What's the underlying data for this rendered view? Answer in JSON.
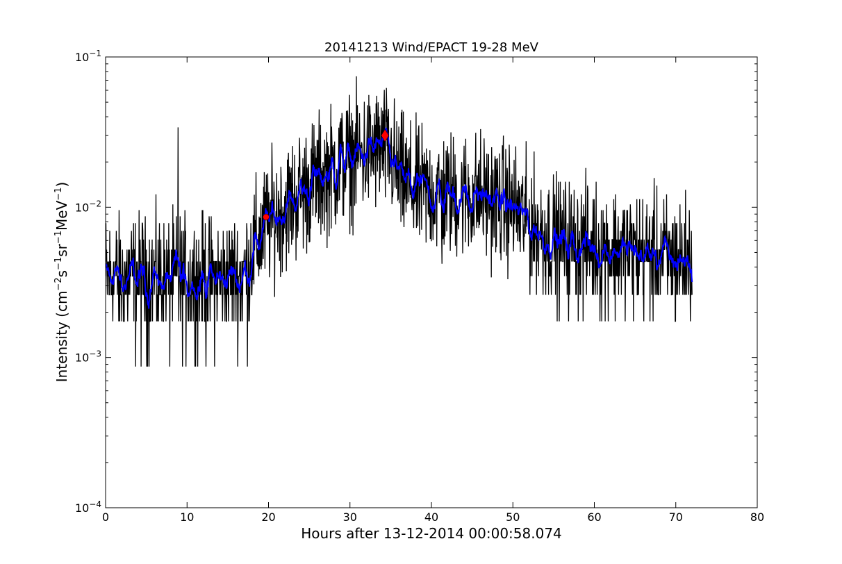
{
  "chart_data": {
    "type": "line",
    "title": "20141213 Wind/EPACT 19-28 MeV",
    "xlabel": "Hours after 13-12-2014 00:00:58.074",
    "ylabel": {
      "prefix": "Intensity (cm",
      "sup1": "−2",
      "mid1": "s",
      "sup2": "−1",
      "mid2": "sr",
      "sup3": "−1",
      "mid3": "MeV",
      "sup4": "−1",
      "suffix": ")"
    },
    "xlim": [
      0,
      80
    ],
    "ylim": [
      0.0001,
      0.1
    ],
    "yscale": "log",
    "x_ticks": [
      0,
      10,
      20,
      30,
      40,
      50,
      60,
      70,
      80
    ],
    "x_tick_labels": [
      "0",
      "10",
      "20",
      "30",
      "40",
      "50",
      "60",
      "70",
      "80"
    ],
    "y_ticks": [
      {
        "value": 0.0001,
        "base": "10",
        "exp": "−4"
      },
      {
        "value": 0.001,
        "base": "10",
        "exp": "−3"
      },
      {
        "value": 0.01,
        "base": "10",
        "exp": "−2"
      },
      {
        "value": 0.1,
        "base": "10",
        "exp": "−1"
      }
    ],
    "grid": false,
    "series": [
      {
        "role": "raw",
        "color": "#000000",
        "x_range": [
          0,
          72
        ],
        "trend": [
          [
            0,
            0.0034
          ],
          [
            5,
            0.0033
          ],
          [
            10,
            0.0033
          ],
          [
            15,
            0.0034
          ],
          [
            17,
            0.0036
          ],
          [
            18,
            0.005
          ],
          [
            20,
            0.008
          ],
          [
            22,
            0.01
          ],
          [
            25,
            0.014
          ],
          [
            28,
            0.018
          ],
          [
            30,
            0.021
          ],
          [
            33,
            0.024
          ],
          [
            34,
            0.025
          ],
          [
            35,
            0.022
          ],
          [
            36,
            0.016
          ],
          [
            38,
            0.013
          ],
          [
            42,
            0.012
          ],
          [
            46,
            0.012
          ],
          [
            50,
            0.01
          ],
          [
            53,
            0.007
          ],
          [
            56,
            0.0058
          ],
          [
            60,
            0.0055
          ],
          [
            65,
            0.005
          ],
          [
            70,
            0.0045
          ],
          [
            72,
            0.0045
          ]
        ],
        "spikes": [
          [
            8.9,
            0.034
          ],
          [
            28.8,
            0.037
          ],
          [
            33.9,
            0.032
          ],
          [
            41.3,
            0.0042
          ]
        ]
      },
      {
        "role": "smoothed",
        "color": "#0000ff",
        "x_range": [
          0,
          72
        ],
        "trend": [
          [
            0,
            0.0034
          ],
          [
            5,
            0.0033
          ],
          [
            10,
            0.0033
          ],
          [
            15,
            0.0034
          ],
          [
            17,
            0.0036
          ],
          [
            18,
            0.005
          ],
          [
            20,
            0.008
          ],
          [
            22,
            0.01
          ],
          [
            25,
            0.014
          ],
          [
            28,
            0.018
          ],
          [
            30,
            0.021
          ],
          [
            33,
            0.024
          ],
          [
            34,
            0.025
          ],
          [
            35,
            0.022
          ],
          [
            36,
            0.016
          ],
          [
            38,
            0.013
          ],
          [
            42,
            0.012
          ],
          [
            46,
            0.012
          ],
          [
            50,
            0.01
          ],
          [
            53,
            0.007
          ],
          [
            56,
            0.0058
          ],
          [
            60,
            0.0055
          ],
          [
            65,
            0.005
          ],
          [
            70,
            0.0045
          ],
          [
            72,
            0.0045
          ]
        ]
      }
    ],
    "markers": [
      {
        "shape": "circle",
        "color": "#ff0000",
        "x": 19.7,
        "y": 0.0086
      },
      {
        "shape": "diamond",
        "color": "#ff0000",
        "x": 34.3,
        "y": 0.03
      }
    ]
  }
}
